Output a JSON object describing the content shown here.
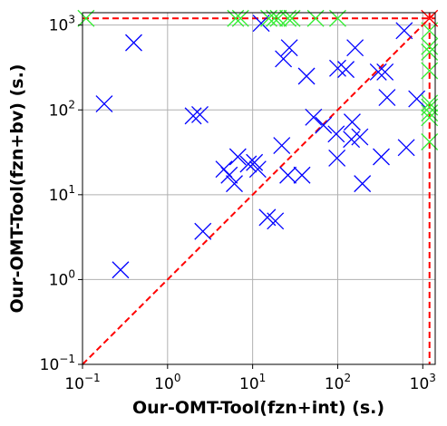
{
  "chart_data": {
    "type": "scatter",
    "xlabel": "Our-OMT-Tool(fzn+int) (s.)",
    "ylabel": "Our-OMT-Tool(fzn+bv) (s.)",
    "xscale": "log",
    "yscale": "log",
    "xlim": [
      0.1,
      1400
    ],
    "ylim": [
      0.1,
      1400
    ],
    "grid": true,
    "timeout": 1200,
    "x_ticks": [
      {
        "value": 0.1,
        "base": "10",
        "exp": "−1"
      },
      {
        "value": 1,
        "base": "10",
        "exp": "0"
      },
      {
        "value": 10,
        "base": "10",
        "exp": "1"
      },
      {
        "value": 100,
        "base": "10",
        "exp": "2"
      },
      {
        "value": 1000,
        "base": "10",
        "exp": "3"
      }
    ],
    "y_ticks": [
      {
        "value": 0.1,
        "base": "10",
        "exp": "−1"
      },
      {
        "value": 1,
        "base": "10",
        "exp": "0"
      },
      {
        "value": 10,
        "base": "10",
        "exp": "1"
      },
      {
        "value": 100,
        "base": "10",
        "exp": "2"
      },
      {
        "value": 1000,
        "base": "10",
        "exp": "3"
      }
    ],
    "colors": {
      "solved": "#0000ff",
      "timeout": "#33ee33",
      "both_timeout": "#ff0000",
      "reference": "#ff0000",
      "grid": "#b0b0b0"
    },
    "series": [
      {
        "color": "#0000ff",
        "points": [
          [
            0.18,
            118
          ],
          [
            0.4,
            620
          ],
          [
            0.28,
            1.3
          ],
          [
            2.0,
            85
          ],
          [
            2.4,
            88
          ],
          [
            2.6,
            3.7
          ],
          [
            4.6,
            20
          ],
          [
            5.3,
            17
          ],
          [
            6.1,
            13.5
          ],
          [
            6.7,
            28
          ],
          [
            8.9,
            23
          ],
          [
            10.5,
            24
          ],
          [
            11.5,
            20
          ],
          [
            12.6,
            1050
          ],
          [
            14.9,
            5.4
          ],
          [
            18.5,
            4.9
          ],
          [
            22,
            38
          ],
          [
            23,
            400
          ],
          [
            26,
            17
          ],
          [
            27,
            540
          ],
          [
            38,
            17
          ],
          [
            43,
            250
          ],
          [
            52,
            82
          ],
          [
            68,
            66
          ],
          [
            96,
            52
          ],
          [
            98,
            27
          ],
          [
            100,
            310
          ],
          [
            125,
            300
          ],
          [
            145,
            45
          ],
          [
            148,
            72
          ],
          [
            160,
            540
          ],
          [
            182,
            48
          ],
          [
            195,
            13.5
          ],
          [
            300,
            280
          ],
          [
            325,
            28
          ],
          [
            360,
            280
          ],
          [
            380,
            140
          ],
          [
            605,
            860
          ],
          [
            640,
            36
          ],
          [
            850,
            135
          ]
        ]
      },
      {
        "color": "#33ee33",
        "points": [
          [
            0.11,
            1200
          ],
          [
            6.3,
            1200
          ],
          [
            7.2,
            1200
          ],
          [
            15.5,
            1200
          ],
          [
            18,
            1200
          ],
          [
            20,
            1200
          ],
          [
            26,
            1200
          ],
          [
            29,
            1200
          ],
          [
            55,
            1200
          ],
          [
            100,
            1200
          ],
          [
            1200,
            860
          ],
          [
            1200,
            560
          ],
          [
            1200,
            480
          ],
          [
            1200,
            290
          ],
          [
            1200,
            120
          ],
          [
            1200,
            108
          ],
          [
            1200,
            92
          ],
          [
            1200,
            81
          ],
          [
            1200,
            42
          ]
        ]
      },
      {
        "color": "#ff0000",
        "points": [
          [
            1200,
            1200
          ]
        ]
      }
    ]
  }
}
